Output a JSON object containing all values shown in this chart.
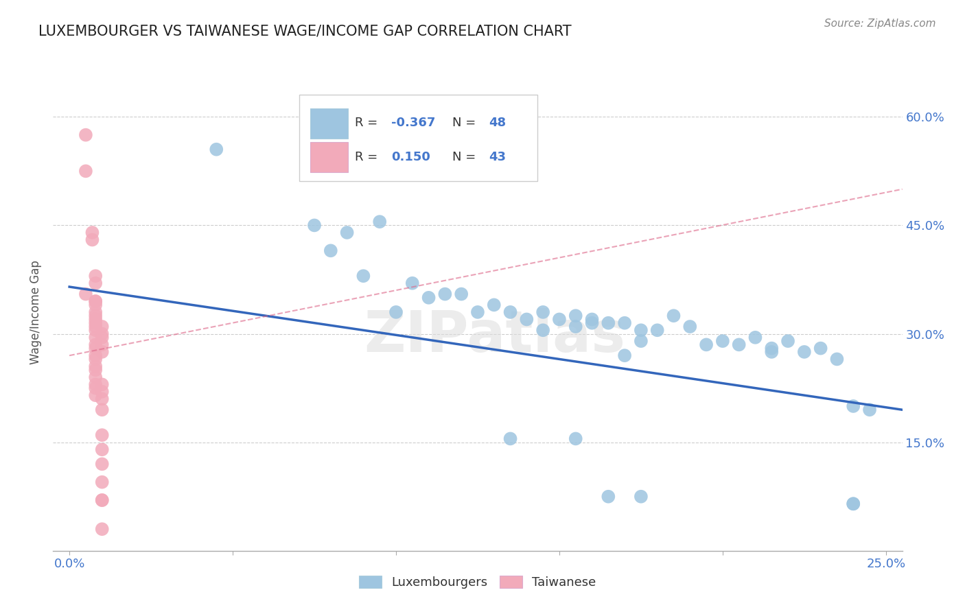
{
  "title": "LUXEMBOURGER VS TAIWANESE WAGE/INCOME GAP CORRELATION CHART",
  "source": "Source: ZipAtlas.com",
  "ylabel": "Wage/Income Gap",
  "x_ticks": [
    0.0,
    0.05,
    0.1,
    0.15,
    0.2,
    0.25
  ],
  "x_tick_labels_show": [
    "0.0%",
    "",
    "",
    "",
    "",
    "25.0%"
  ],
  "y_ticks_right": [
    0.15,
    0.3,
    0.45,
    0.6
  ],
  "y_tick_labels_right": [
    "15.0%",
    "30.0%",
    "45.0%",
    "60.0%"
  ],
  "xlim": [
    -0.005,
    0.255
  ],
  "ylim": [
    0.0,
    0.66
  ],
  "R_blue": "-0.367",
  "N_blue": "48",
  "R_pink": "0.150",
  "N_pink": "43",
  "blue_color": "#9EC5E0",
  "pink_color": "#F2AABA",
  "trendline_blue_color": "#3366BB",
  "trendline_pink_color": "#DD6688",
  "watermark": "ZIPatlas",
  "legend_labels": [
    "Luxembourgers",
    "Taiwanese"
  ],
  "blue_points_x": [
    0.045,
    0.075,
    0.08,
    0.085,
    0.095,
    0.09,
    0.1,
    0.105,
    0.11,
    0.115,
    0.12,
    0.125,
    0.13,
    0.135,
    0.14,
    0.145,
    0.145,
    0.15,
    0.155,
    0.155,
    0.16,
    0.16,
    0.165,
    0.17,
    0.17,
    0.175,
    0.175,
    0.18,
    0.185,
    0.19,
    0.195,
    0.2,
    0.205,
    0.21,
    0.215,
    0.215,
    0.22,
    0.225,
    0.23,
    0.235,
    0.24,
    0.245,
    0.135,
    0.155,
    0.165,
    0.175,
    0.24,
    0.24
  ],
  "blue_points_y": [
    0.555,
    0.45,
    0.415,
    0.44,
    0.455,
    0.38,
    0.33,
    0.37,
    0.35,
    0.355,
    0.355,
    0.33,
    0.34,
    0.33,
    0.32,
    0.33,
    0.305,
    0.32,
    0.31,
    0.325,
    0.32,
    0.315,
    0.315,
    0.315,
    0.27,
    0.305,
    0.29,
    0.305,
    0.325,
    0.31,
    0.285,
    0.29,
    0.285,
    0.295,
    0.275,
    0.28,
    0.29,
    0.275,
    0.28,
    0.265,
    0.2,
    0.195,
    0.155,
    0.155,
    0.075,
    0.075,
    0.065,
    0.065
  ],
  "pink_points_x": [
    0.005,
    0.005,
    0.005,
    0.007,
    0.007,
    0.008,
    0.008,
    0.008,
    0.008,
    0.008,
    0.008,
    0.008,
    0.008,
    0.008,
    0.008,
    0.008,
    0.008,
    0.008,
    0.008,
    0.008,
    0.008,
    0.008,
    0.008,
    0.008,
    0.008,
    0.008,
    0.008,
    0.01,
    0.01,
    0.01,
    0.01,
    0.01,
    0.01,
    0.01,
    0.01,
    0.01,
    0.01,
    0.01,
    0.01,
    0.01,
    0.01,
    0.01,
    0.01
  ],
  "pink_points_y": [
    0.575,
    0.525,
    0.355,
    0.44,
    0.43,
    0.38,
    0.37,
    0.345,
    0.345,
    0.34,
    0.33,
    0.325,
    0.32,
    0.315,
    0.31,
    0.305,
    0.295,
    0.285,
    0.28,
    0.27,
    0.265,
    0.255,
    0.25,
    0.24,
    0.23,
    0.225,
    0.215,
    0.31,
    0.3,
    0.295,
    0.285,
    0.275,
    0.23,
    0.22,
    0.21,
    0.195,
    0.16,
    0.14,
    0.12,
    0.095,
    0.07,
    0.07,
    0.03
  ],
  "blue_trend_x": [
    0.0,
    0.255
  ],
  "blue_trend_y": [
    0.365,
    0.195
  ],
  "pink_trend_x": [
    0.0,
    0.015
  ],
  "pink_trend_y": [
    0.27,
    0.33
  ],
  "pink_dashed_trend_x": [
    0.0,
    0.255
  ],
  "pink_dashed_trend_y": [
    0.27,
    0.5
  ]
}
